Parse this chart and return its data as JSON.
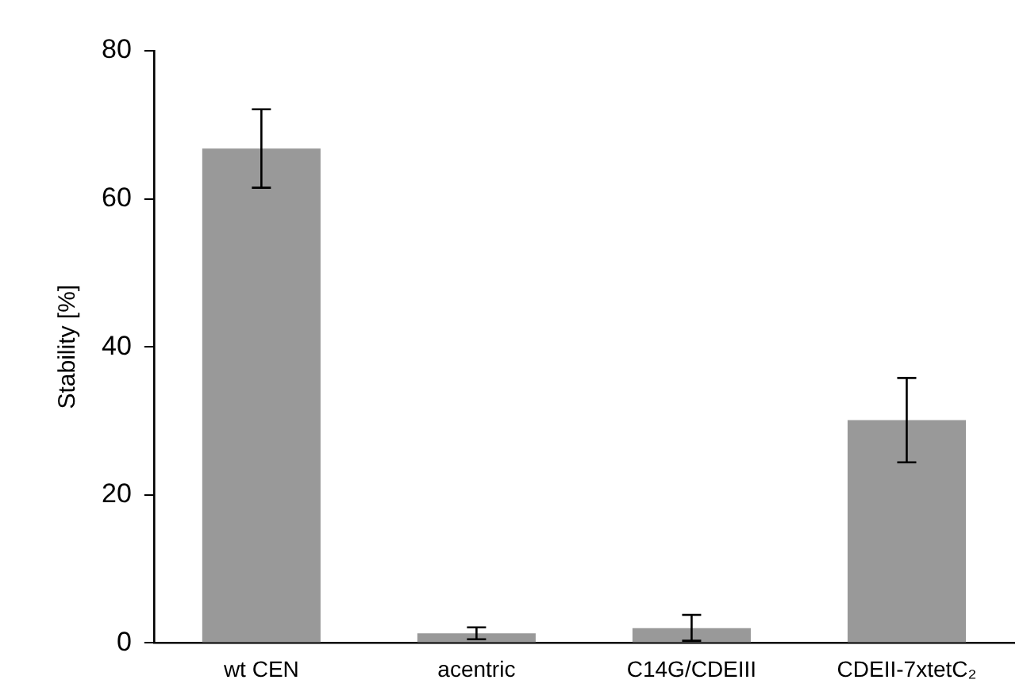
{
  "chart_data": {
    "type": "bar",
    "ylabel": "Stability [%]",
    "categories": [
      "wt CEN",
      "acentric",
      "C14G/CDEIII",
      "CDEII-7xtetC₂"
    ],
    "values": [
      66.8,
      1.3,
      2.0,
      30.1
    ],
    "errors": [
      5.3,
      0.8,
      [
        0.3,
        3.8
      ],
      5.7
    ],
    "color": "#999999",
    "ylim": [
      0,
      80
    ],
    "yticks": [
      0,
      20,
      40,
      60,
      80
    ],
    "grid": false,
    "legend": false
  }
}
